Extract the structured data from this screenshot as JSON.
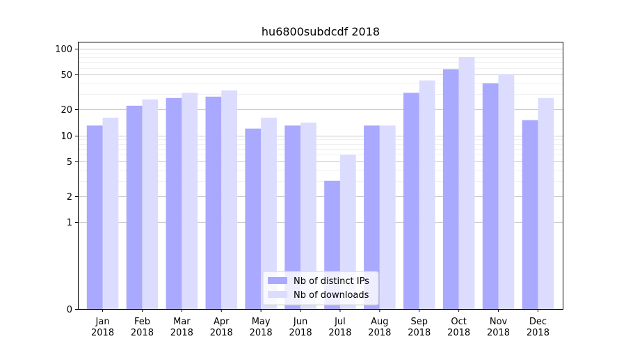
{
  "chart_data": {
    "type": "bar",
    "title": "hu6800subdcdf 2018",
    "xlabel": "",
    "ylabel": "",
    "y_scale": "symlog",
    "ylim": [
      0,
      120
    ],
    "y_ticks": [
      0,
      1,
      2,
      5,
      10,
      20,
      50,
      100
    ],
    "grid": "horizontal",
    "legend_position": "lower center",
    "categories": [
      [
        "Jan",
        "2018"
      ],
      [
        "Feb",
        "2018"
      ],
      [
        "Mar",
        "2018"
      ],
      [
        "Apr",
        "2018"
      ],
      [
        "May",
        "2018"
      ],
      [
        "Jun",
        "2018"
      ],
      [
        "Jul",
        "2018"
      ],
      [
        "Aug",
        "2018"
      ],
      [
        "Sep",
        "2018"
      ],
      [
        "Oct",
        "2018"
      ],
      [
        "Nov",
        "2018"
      ],
      [
        "Dec",
        "2018"
      ]
    ],
    "series": [
      {
        "name": "Nb of distinct IPs",
        "color": "#a9a9ff",
        "values": [
          13,
          22,
          27,
          28,
          12,
          13,
          3,
          13,
          31,
          58,
          40,
          15
        ]
      },
      {
        "name": "Nb of downloads",
        "color": "#dcdcff",
        "values": [
          16,
          26,
          31,
          33,
          16,
          14,
          6,
          13,
          43,
          80,
          51,
          27
        ]
      }
    ]
  }
}
